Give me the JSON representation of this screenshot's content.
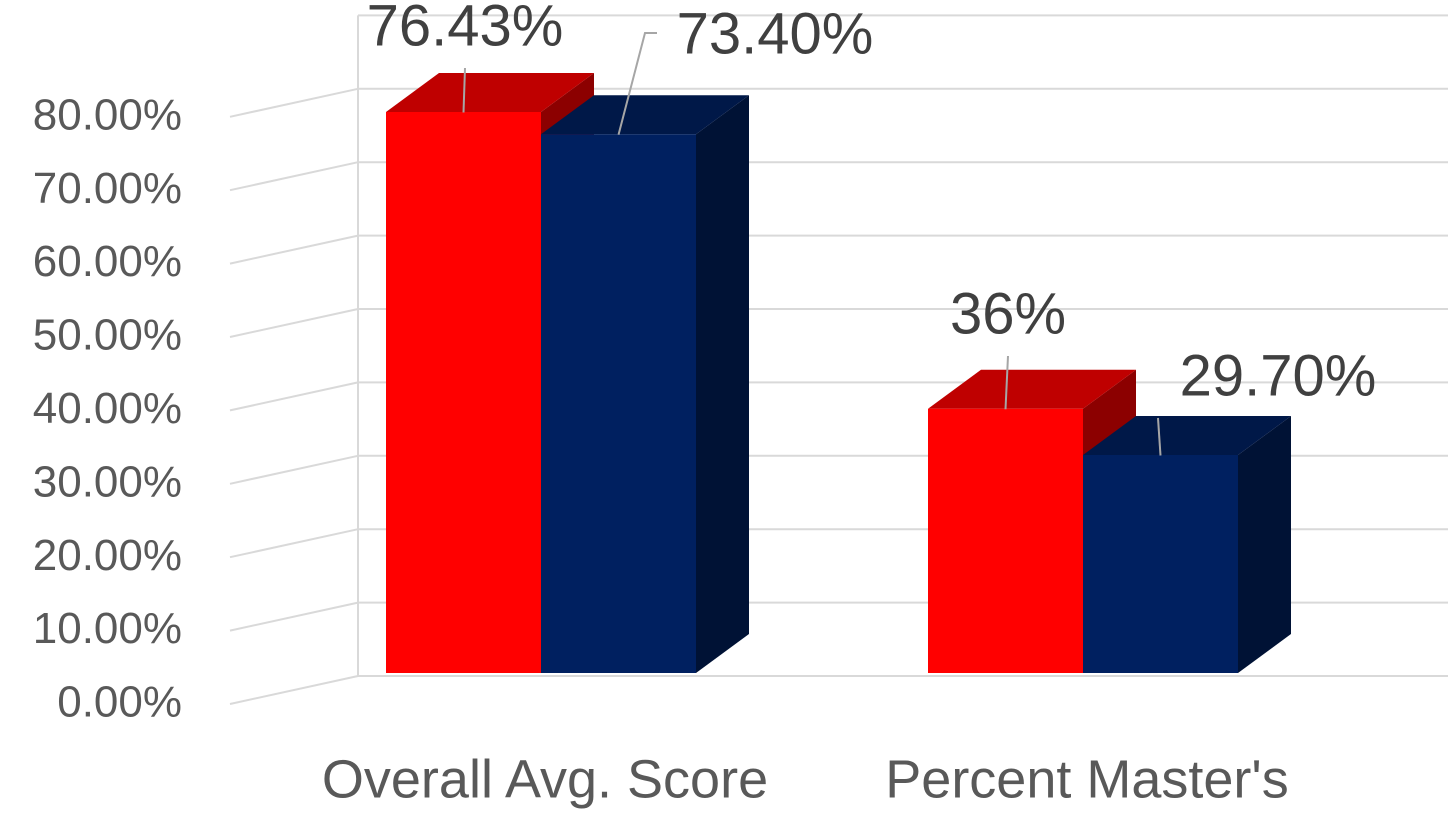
{
  "chart_data": {
    "type": "bar3d",
    "categories": [
      "Overall Avg. Score",
      "Percent Master's"
    ],
    "series": [
      {
        "color": "#ff0000",
        "values": [
          76.43,
          36
        ],
        "value_labels": [
          "76.43%",
          "36%"
        ]
      },
      {
        "color": "#002060",
        "values": [
          73.4,
          29.7
        ],
        "value_labels": [
          "73.40%",
          "29.70%"
        ]
      }
    ],
    "ylim": [
      0,
      90
    ],
    "yticks": [
      {
        "value": 0,
        "label": "0.00%"
      },
      {
        "value": 10,
        "label": "10.00%"
      },
      {
        "value": 20,
        "label": "20.00%"
      },
      {
        "value": 30,
        "label": "30.00%"
      },
      {
        "value": 40,
        "label": "40.00%"
      },
      {
        "value": 50,
        "label": "50.00%"
      },
      {
        "value": 60,
        "label": "60.00%"
      },
      {
        "value": 70,
        "label": "70.00%"
      },
      {
        "value": 80,
        "label": "80.00%"
      }
    ],
    "grid": true
  }
}
